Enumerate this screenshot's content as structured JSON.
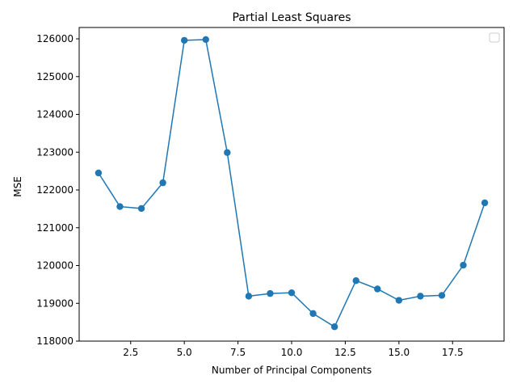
{
  "chart_data": {
    "type": "line",
    "title": "Partial Least Squares",
    "xlabel": "Number of Principal Components",
    "ylabel": "MSE",
    "xlim": [
      0.1,
      19.9
    ],
    "ylim": [
      118000,
      126300
    ],
    "xticks": [
      2.5,
      5.0,
      7.5,
      10.0,
      12.5,
      15.0,
      17.5
    ],
    "xtick_labels": [
      "2.5",
      "5.0",
      "7.5",
      "10.0",
      "12.5",
      "15.0",
      "17.5"
    ],
    "yticks": [
      118000,
      119000,
      120000,
      121000,
      122000,
      123000,
      124000,
      125000,
      126000
    ],
    "ytick_labels": [
      "118000",
      "119000",
      "120000",
      "121000",
      "122000",
      "123000",
      "124000",
      "125000",
      "126000"
    ],
    "grid": false,
    "legend": "upper right (empty)",
    "color": "#1f77b4",
    "marker": "circle",
    "series": [
      {
        "x": [
          1,
          2,
          3,
          4,
          5,
          6,
          7,
          8,
          9,
          10,
          11,
          12,
          13,
          14,
          15,
          16,
          17,
          18,
          19
        ],
        "y": [
          122450,
          121560,
          121510,
          122190,
          125960,
          125980,
          122990,
          119190,
          119260,
          119280,
          118730,
          118380,
          119600,
          119380,
          119080,
          119190,
          119210,
          120010,
          121660
        ]
      }
    ]
  }
}
